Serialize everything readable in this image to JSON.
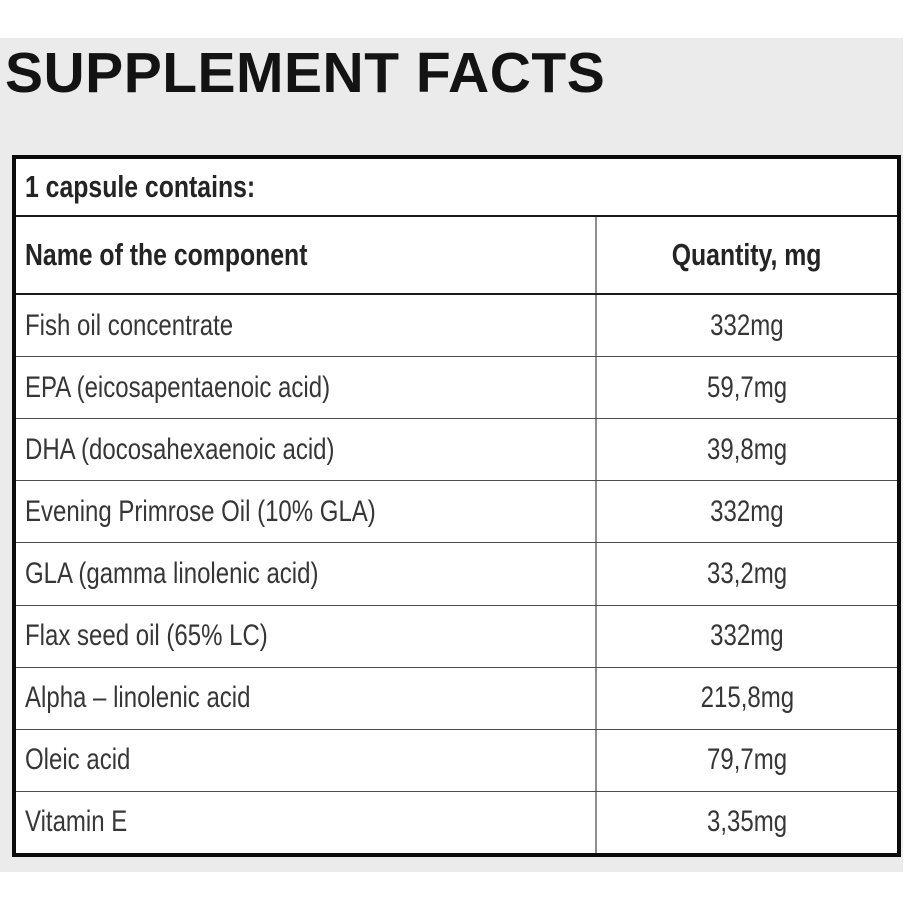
{
  "title": "SUPPLEMENT FACTS",
  "table": {
    "caption": "1 capsule contains:",
    "columns": [
      "Name of the component",
      "Quantity, mg"
    ],
    "rows": [
      {
        "name": "Fish oil concentrate",
        "quantity": "332mg"
      },
      {
        "name": "EPA (eicosapentaenoic acid)",
        "quantity": "59,7mg"
      },
      {
        "name": "DHA (docosahexaenoic acid)",
        "quantity": "39,8mg"
      },
      {
        "name": "Evening Primrose Oil (10% GLA)",
        "quantity": "332mg"
      },
      {
        "name": "GLA (gamma linolenic acid)",
        "quantity": "33,2mg"
      },
      {
        "name": "Flax seed oil (65% LC)",
        "quantity": "332mg"
      },
      {
        "name": "Alpha – linolenic acid",
        "quantity": "215,8mg"
      },
      {
        "name": "Oleic acid",
        "quantity": "79,7mg"
      },
      {
        "name": "Vitamin E",
        "quantity": "3,35mg"
      }
    ]
  },
  "colors": {
    "panel_background": "#ebebeb",
    "table_background": "#ffffff",
    "outer_border": "#0b0b0b",
    "section_divider": "#1a1a1a",
    "row_divider": "#4d4d4d",
    "column_divider": "#8f8f8f",
    "text": "#363636",
    "title_text": "#131313"
  }
}
